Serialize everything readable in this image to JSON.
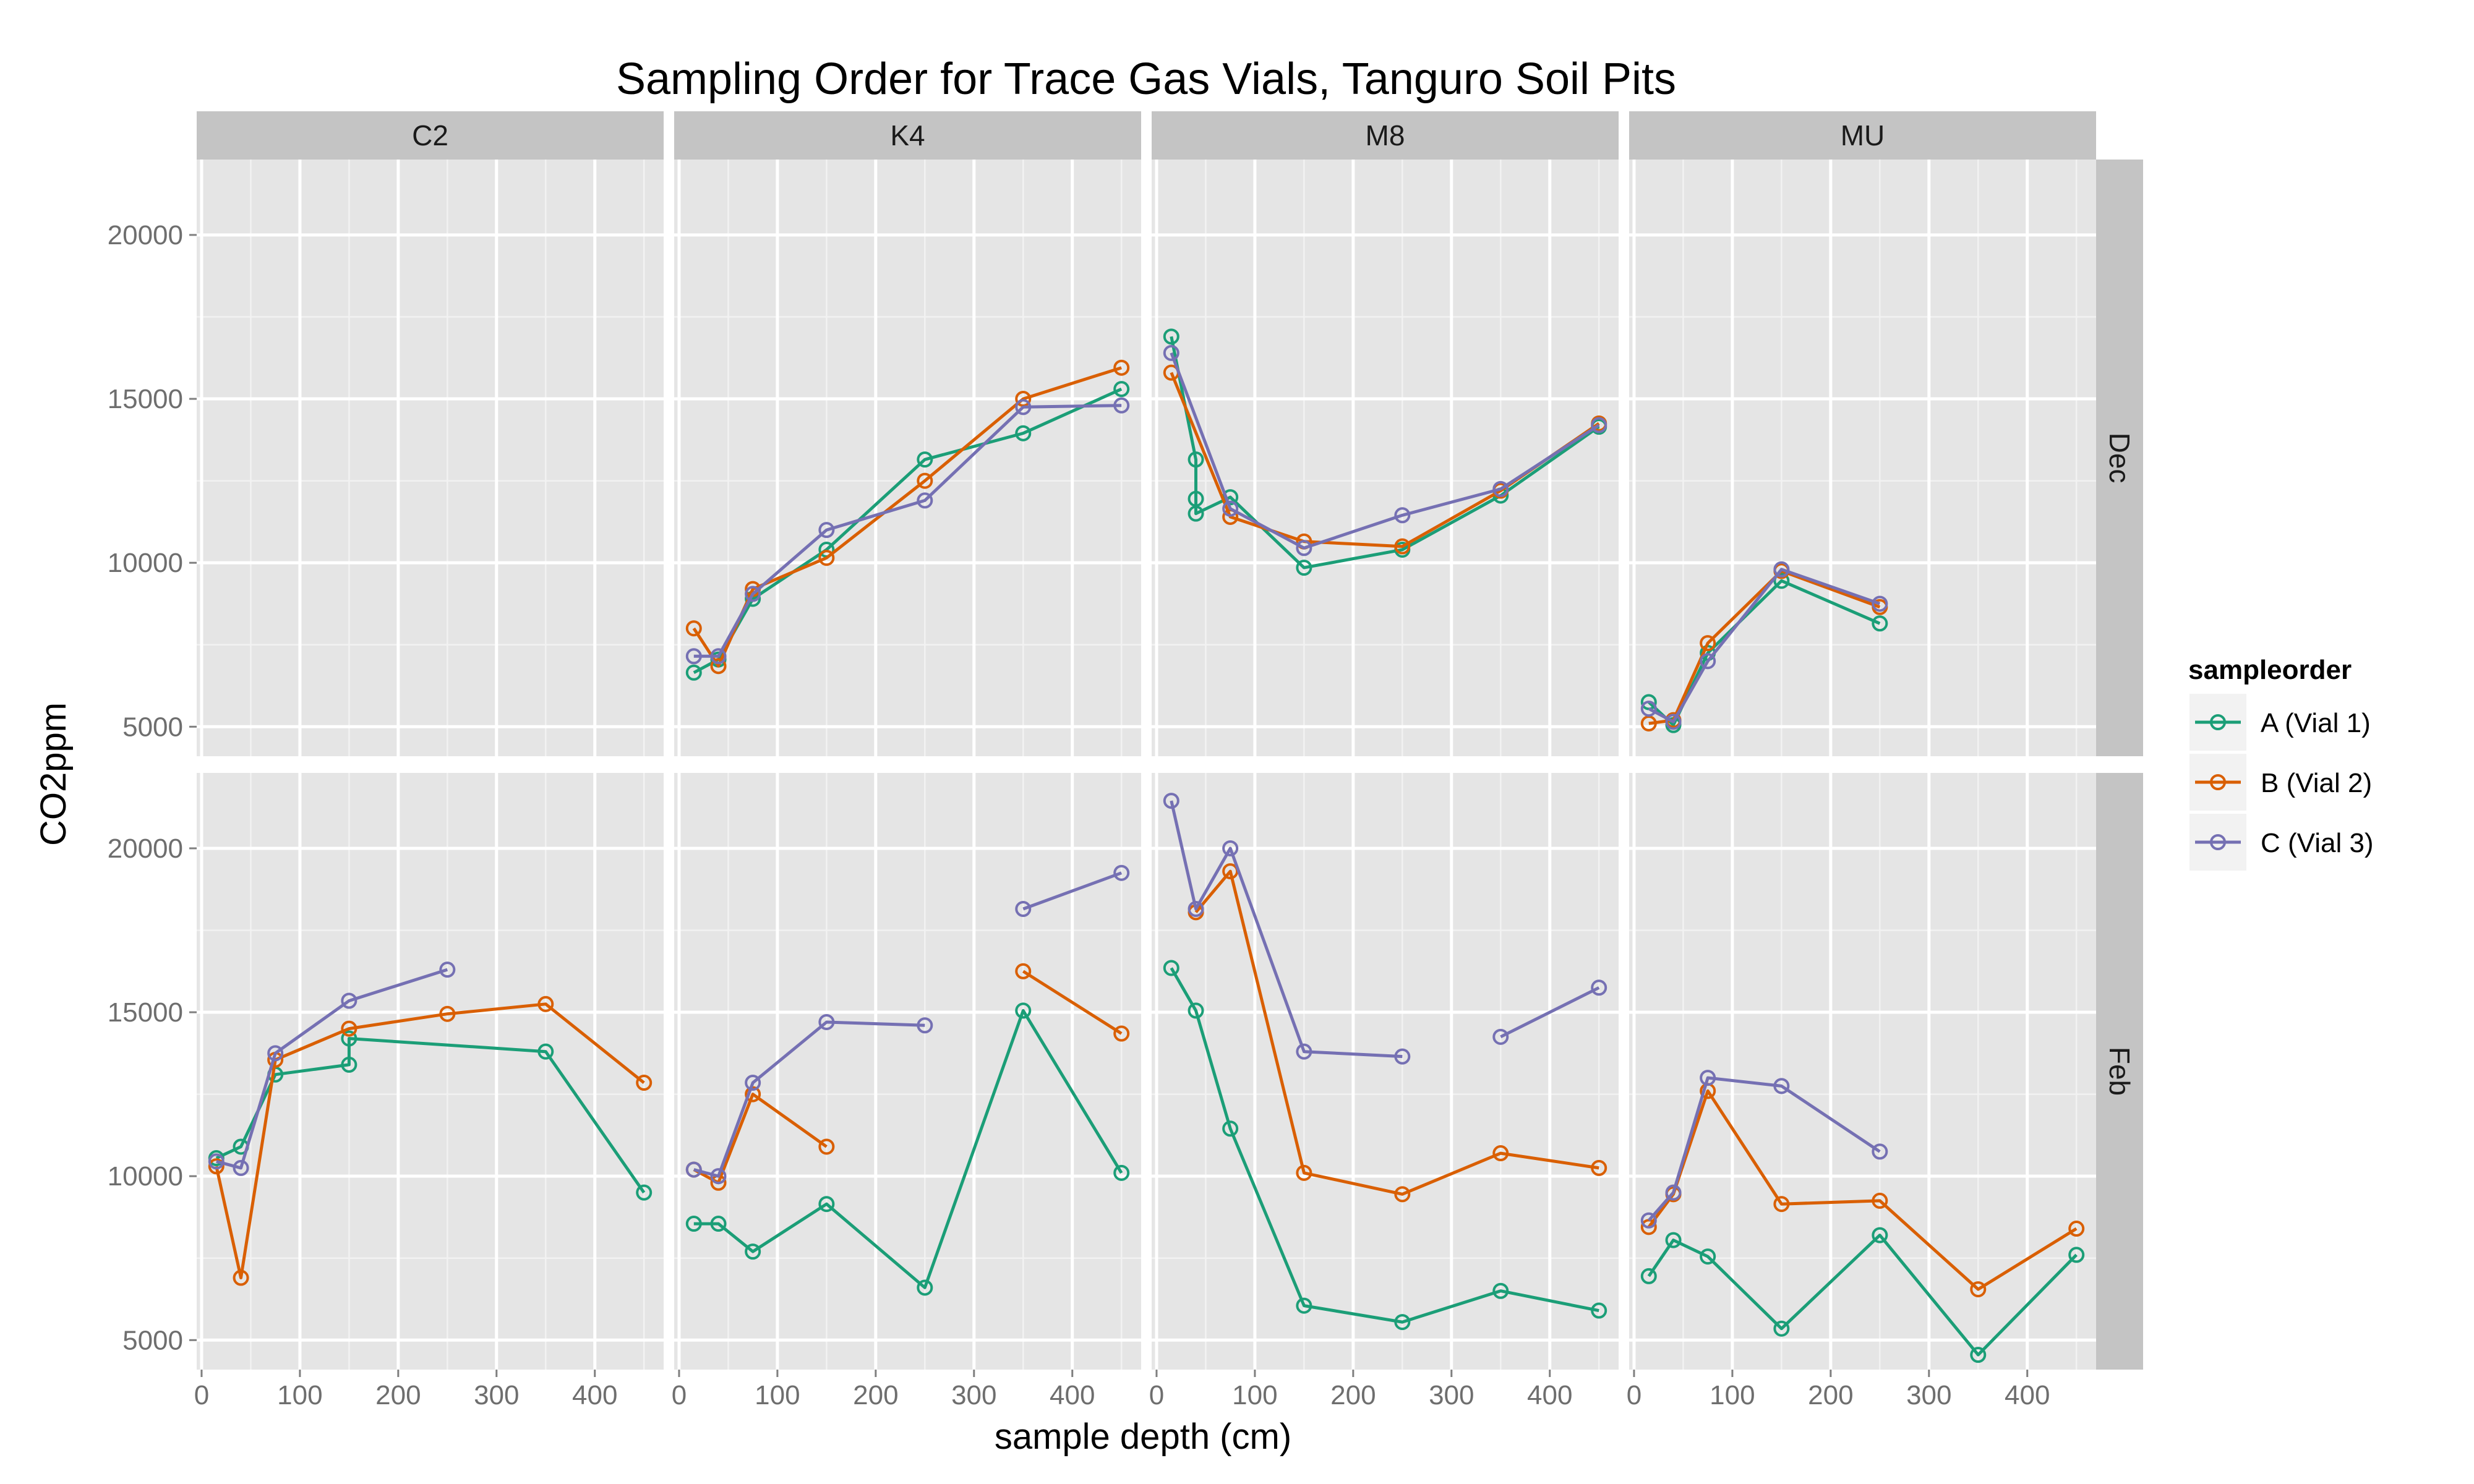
{
  "chart_data": {
    "type": "line",
    "title": "Sampling Order for Trace Gas Vials, Tanguro Soil Pits",
    "xlabel": "sample depth (cm)",
    "ylabel": "CO2ppm",
    "xlim": [
      -5,
      470
    ],
    "ylim": [
      4100,
      22300
    ],
    "x_ticks": [
      0,
      100,
      200,
      300,
      400
    ],
    "y_ticks": [
      5000,
      10000,
      15000,
      20000
    ],
    "grid": true,
    "facet_cols": [
      "C2",
      "K4",
      "M8",
      "MU"
    ],
    "facet_rows": [
      "Dec",
      "Feb"
    ],
    "legend": {
      "title": "sampleorder",
      "position": "right",
      "entries": [
        {
          "label": "A (Vial 1)",
          "color": "#1b9e77"
        },
        {
          "label": "B (Vial 2)",
          "color": "#d95f02"
        },
        {
          "label": "C (Vial 3)",
          "color": "#7570b3"
        }
      ]
    },
    "colors": {
      "panel": "#e5e5e5",
      "strip": "#c4c4c4",
      "grid": "#ffffff"
    },
    "panels": [
      {
        "col": "C2",
        "row": "Dec",
        "series": [
          {
            "name": "A (Vial 1)",
            "segments": []
          },
          {
            "name": "B (Vial 2)",
            "segments": []
          },
          {
            "name": "C (Vial 3)",
            "segments": []
          }
        ]
      },
      {
        "col": "K4",
        "row": "Dec",
        "series": [
          {
            "name": "A (Vial 1)",
            "segments": [
              [
                [
                  15,
                  6650
                ],
                [
                  40,
                  7050
                ],
                [
                  75,
                  8900
                ],
                [
                  150,
                  10400
                ],
                [
                  250,
                  13150
                ],
                [
                  350,
                  13950
                ],
                [
                  450,
                  15300
                ]
              ]
            ]
          },
          {
            "name": "B (Vial 2)",
            "segments": [
              [
                [
                  15,
                  8000
                ],
                [
                  40,
                  6850
                ],
                [
                  75,
                  9200
                ],
                [
                  150,
                  10150
                ],
                [
                  250,
                  12500
                ],
                [
                  350,
                  15000
                ],
                [
                  450,
                  15950
                ]
              ]
            ]
          },
          {
            "name": "C (Vial 3)",
            "segments": [
              [
                [
                  15,
                  7150
                ],
                [
                  40,
                  7150
                ],
                [
                  75,
                  9050
                ],
                [
                  150,
                  11000
                ],
                [
                  250,
                  11900
                ],
                [
                  350,
                  14750
                ],
                [
                  450,
                  14800
                ]
              ]
            ]
          }
        ]
      },
      {
        "col": "M8",
        "row": "Dec",
        "series": [
          {
            "name": "A (Vial 1)",
            "segments": [
              [
                [
                  15,
                  16900
                ],
                [
                  40,
                  13150
                ],
                [
                  40,
                  11950
                ],
                [
                  40,
                  11500
                ],
                [
                  75,
                  12000
                ],
                [
                  150,
                  9850
                ],
                [
                  250,
                  10400
                ],
                [
                  350,
                  12050
                ],
                [
                  450,
                  14150
                ]
              ]
            ]
          },
          {
            "name": "B (Vial 2)",
            "segments": [
              [
                [
                  15,
                  15800
                ],
                [
                  75,
                  11400
                ],
                [
                  150,
                  10650
                ],
                [
                  250,
                  10500
                ],
                [
                  350,
                  12200
                ],
                [
                  450,
                  14250
                ]
              ]
            ]
          },
          {
            "name": "C (Vial 3)",
            "segments": [
              [
                [
                  15,
                  16400
                ],
                [
                  75,
                  11650
                ],
                [
                  150,
                  10450
                ],
                [
                  250,
                  11450
                ],
                [
                  350,
                  12250
                ],
                [
                  450,
                  14200
                ]
              ]
            ]
          }
        ]
      },
      {
        "col": "MU",
        "row": "Dec",
        "series": [
          {
            "name": "A (Vial 1)",
            "segments": [
              [
                [
                  15,
                  5750
                ],
                [
                  40,
                  5050
                ],
                [
                  75,
                  7250
                ],
                [
                  150,
                  9450
                ],
                [
                  250,
                  8150
                ]
              ]
            ]
          },
          {
            "name": "B (Vial 2)",
            "segments": [
              [
                [
                  15,
                  5100
                ],
                [
                  40,
                  5200
                ],
                [
                  75,
                  7550
                ],
                [
                  150,
                  9750
                ],
                [
                  250,
                  8650
                ]
              ]
            ]
          },
          {
            "name": "C (Vial 3)",
            "segments": [
              [
                [
                  15,
                  5550
                ],
                [
                  40,
                  5150
                ],
                [
                  75,
                  7000
                ],
                [
                  150,
                  9800
                ],
                [
                  250,
                  8750
                ]
              ]
            ]
          }
        ]
      },
      {
        "col": "C2",
        "row": "Feb",
        "series": [
          {
            "name": "A (Vial 1)",
            "segments": [
              [
                [
                  15,
                  10550
                ],
                [
                  40,
                  10900
                ],
                [
                  75,
                  13100
                ],
                [
                  150,
                  13400
                ],
                [
                  150,
                  14200
                ],
                [
                  350,
                  13800
                ],
                [
                  450,
                  9500
                ]
              ]
            ]
          },
          {
            "name": "B (Vial 2)",
            "segments": [
              [
                [
                  15,
                  10300
                ],
                [
                  40,
                  6900
                ],
                [
                  75,
                  13550
                ],
                [
                  150,
                  14500
                ],
                [
                  250,
                  14950
                ],
                [
                  350,
                  15250
                ],
                [
                  450,
                  12850
                ]
              ]
            ]
          },
          {
            "name": "C (Vial 3)",
            "segments": [
              [
                [
                  15,
                  10450
                ],
                [
                  40,
                  10250
                ],
                [
                  75,
                  13750
                ],
                [
                  150,
                  15350
                ],
                [
                  250,
                  16300
                ]
              ]
            ]
          }
        ]
      },
      {
        "col": "K4",
        "row": "Feb",
        "series": [
          {
            "name": "A (Vial 1)",
            "segments": [
              [
                [
                  15,
                  8550
                ],
                [
                  40,
                  8550
                ],
                [
                  75,
                  7700
                ],
                [
                  150,
                  9150
                ],
                [
                  250,
                  6600
                ],
                [
                  350,
                  15050
                ],
                [
                  450,
                  10100
                ]
              ]
            ]
          },
          {
            "name": "B (Vial 2)",
            "segments": [
              [
                [
                  15,
                  10200
                ],
                [
                  40,
                  9800
                ],
                [
                  75,
                  12500
                ],
                [
                  150,
                  10900
                ]
              ],
              [
                [
                  350,
                  16250
                ],
                [
                  450,
                  14350
                ]
              ]
            ]
          },
          {
            "name": "C (Vial 3)",
            "segments": [
              [
                [
                  15,
                  10200
                ],
                [
                  40,
                  10000
                ],
                [
                  75,
                  12850
                ],
                [
                  150,
                  14700
                ],
                [
                  250,
                  14600
                ]
              ],
              [
                [
                  350,
                  18150
                ],
                [
                  450,
                  19250
                ]
              ]
            ]
          }
        ]
      },
      {
        "col": "M8",
        "row": "Feb",
        "series": [
          {
            "name": "A (Vial 1)",
            "segments": [
              [
                [
                  15,
                  16350
                ],
                [
                  40,
                  15050
                ],
                [
                  75,
                  11450
                ],
                [
                  150,
                  6050
                ],
                [
                  250,
                  5550
                ],
                [
                  350,
                  6500
                ],
                [
                  450,
                  5900
                ]
              ]
            ]
          },
          {
            "name": "B (Vial 2)",
            "segments": [
              [
                [
                  40,
                  18050
                ],
                [
                  75,
                  19300
                ],
                [
                  150,
                  10100
                ],
                [
                  250,
                  9450
                ],
                [
                  350,
                  10700
                ],
                [
                  450,
                  10250
                ]
              ]
            ]
          },
          {
            "name": "C (Vial 3)",
            "segments": [
              [
                [
                  15,
                  21450
                ],
                [
                  40,
                  18150
                ],
                [
                  75,
                  20000
                ],
                [
                  150,
                  13800
                ],
                [
                  250,
                  13650
                ]
              ],
              [
                [
                  350,
                  14250
                ],
                [
                  450,
                  15750
                ]
              ]
            ]
          }
        ]
      },
      {
        "col": "MU",
        "row": "Feb",
        "series": [
          {
            "name": "A (Vial 1)",
            "segments": [
              [
                [
                  15,
                  6950
                ],
                [
                  40,
                  8050
                ],
                [
                  75,
                  7550
                ],
                [
                  150,
                  5350
                ],
                [
                  250,
                  8200
                ],
                [
                  350,
                  4550
                ],
                [
                  450,
                  7600
                ]
              ]
            ]
          },
          {
            "name": "B (Vial 2)",
            "segments": [
              [
                [
                  15,
                  8450
                ],
                [
                  40,
                  9450
                ],
                [
                  75,
                  12600
                ],
                [
                  150,
                  9150
                ],
                [
                  250,
                  9250
                ],
                [
                  350,
                  6550
                ],
                [
                  450,
                  8400
                ]
              ]
            ]
          },
          {
            "name": "C (Vial 3)",
            "segments": [
              [
                [
                  15,
                  8650
                ],
                [
                  40,
                  9500
                ],
                [
                  75,
                  13000
                ],
                [
                  150,
                  12750
                ],
                [
                  250,
                  10750
                ]
              ]
            ]
          }
        ]
      }
    ]
  }
}
